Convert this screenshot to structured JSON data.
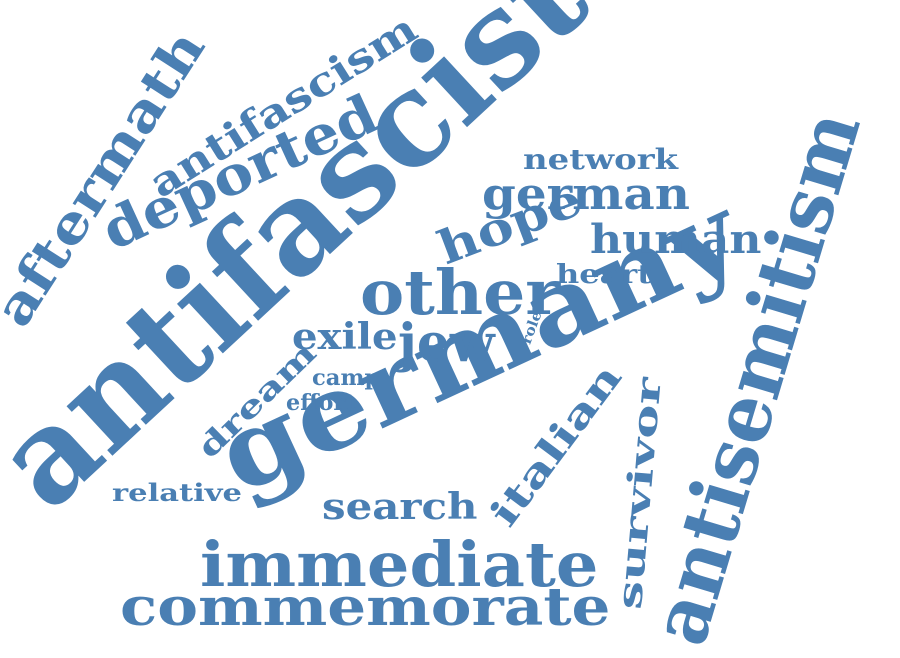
{
  "colors": {
    "word": "#4a7fb3",
    "background": "#ffffff"
  },
  "words": {
    "antifascist": "antifascist",
    "germany": "germany",
    "antisemitism": "antisemitism",
    "immediate": "immediate",
    "commemorate": "commemorate",
    "other": "other",
    "deported": "deported",
    "aftermath": "aftermath",
    "antifascism": "antifascism",
    "german": "german",
    "hope": "hope",
    "human": "human",
    "jew": "jew",
    "italian": "italian",
    "survivor": "survivor",
    "search": "search",
    "exile": "exile",
    "network": "network",
    "heart": "heart",
    "dream": "dream",
    "relative": "relative",
    "camp": "camp",
    "effort": "effort",
    "role": "role"
  }
}
